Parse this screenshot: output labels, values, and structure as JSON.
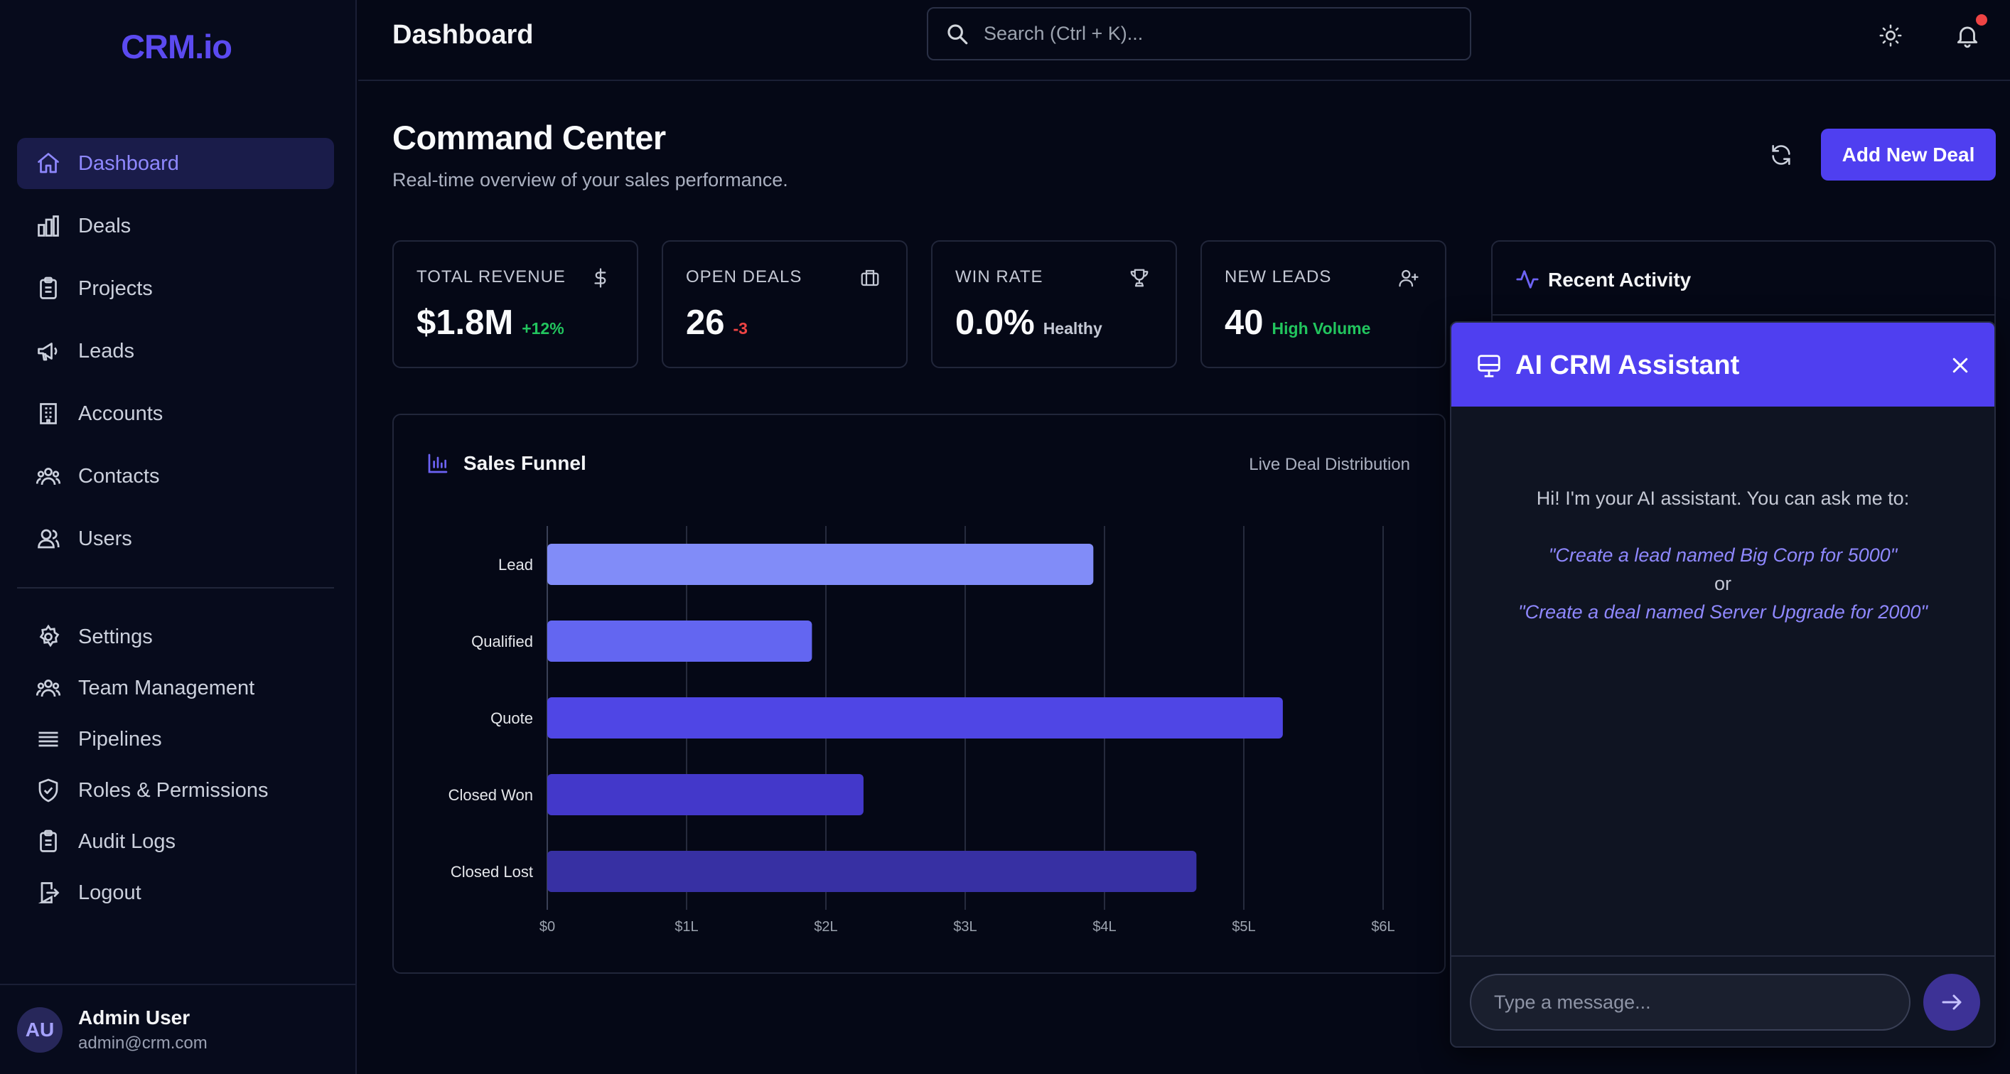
{
  "app": {
    "logo": "CRM.io"
  },
  "colors": {
    "accent": "#4f3ff0",
    "positive": "#22c55e",
    "negative": "#ef4444",
    "background": "#050816"
  },
  "sidebar": {
    "items": [
      {
        "label": "Dashboard",
        "icon": "home-icon",
        "active": true
      },
      {
        "label": "Deals",
        "icon": "bar-chart-icon"
      },
      {
        "label": "Projects",
        "icon": "clipboard-icon"
      },
      {
        "label": "Leads",
        "icon": "megaphone-icon"
      },
      {
        "label": "Accounts",
        "icon": "building-icon"
      },
      {
        "label": "Contacts",
        "icon": "users-icon"
      },
      {
        "label": "Users",
        "icon": "user-group-icon"
      }
    ],
    "secondary": [
      {
        "label": "Settings",
        "icon": "gear-icon"
      },
      {
        "label": "Team Management",
        "icon": "users-icon"
      },
      {
        "label": "Pipelines",
        "icon": "list-icon"
      },
      {
        "label": "Roles & Permissions",
        "icon": "shield-icon"
      },
      {
        "label": "Audit Logs",
        "icon": "clipboard-icon"
      },
      {
        "label": "Logout",
        "icon": "logout-icon"
      }
    ],
    "user": {
      "initials": "AU",
      "name": "Admin User",
      "email": "admin@crm.com"
    }
  },
  "header": {
    "title": "Dashboard",
    "search_placeholder": "Search (Ctrl + K)..."
  },
  "main": {
    "title": "Command Center",
    "subtitle": "Real-time overview of your sales performance.",
    "add_button": "Add New Deal",
    "stats": [
      {
        "label": "TOTAL REVENUE",
        "value": "$1.8M",
        "note": "+12%",
        "note_color": "#22c55e",
        "icon": "dollar-icon"
      },
      {
        "label": "OPEN DEALS",
        "value": "26",
        "note": "-3",
        "note_color": "#ef4444",
        "icon": "briefcase-icon"
      },
      {
        "label": "WIN RATE",
        "value": "0.0%",
        "note": "Healthy",
        "note_color": "#c4c8d4",
        "icon": "trophy-icon"
      },
      {
        "label": "NEW LEADS",
        "value": "40",
        "note": "High Volume",
        "note_color": "#22c55e",
        "icon": "user-plus-icon"
      }
    ],
    "funnel": {
      "title": "Sales Funnel",
      "subtitle": "Live Deal Distribution"
    },
    "activity": {
      "title": "Recent Activity"
    }
  },
  "chart_data": {
    "type": "bar",
    "orientation": "horizontal",
    "title": "Sales Funnel",
    "categories": [
      "Lead",
      "Qualified",
      "Quote",
      "Closed Won",
      "Closed Lost"
    ],
    "values": [
      3.92,
      1.9,
      5.28,
      2.27,
      4.66
    ],
    "unit": "million USD",
    "xlim": [
      0,
      6
    ],
    "xticks": [
      "$0",
      "$1L",
      "$2L",
      "$3L",
      "$4L",
      "$5L",
      "$6L"
    ],
    "bar_colors": [
      "#818cf8",
      "#6366f1",
      "#4f46e5",
      "#4338ca",
      "#3730a3"
    ],
    "grid": true
  },
  "assistant": {
    "title": "AI CRM Assistant",
    "intro": "Hi! I'm your AI assistant. You can ask me to:",
    "example1": "\"Create a lead named Big Corp for 5000\"",
    "or": "or",
    "example2": "\"Create a deal named Server Upgrade for 2000\"",
    "input_placeholder": "Type a message..."
  }
}
